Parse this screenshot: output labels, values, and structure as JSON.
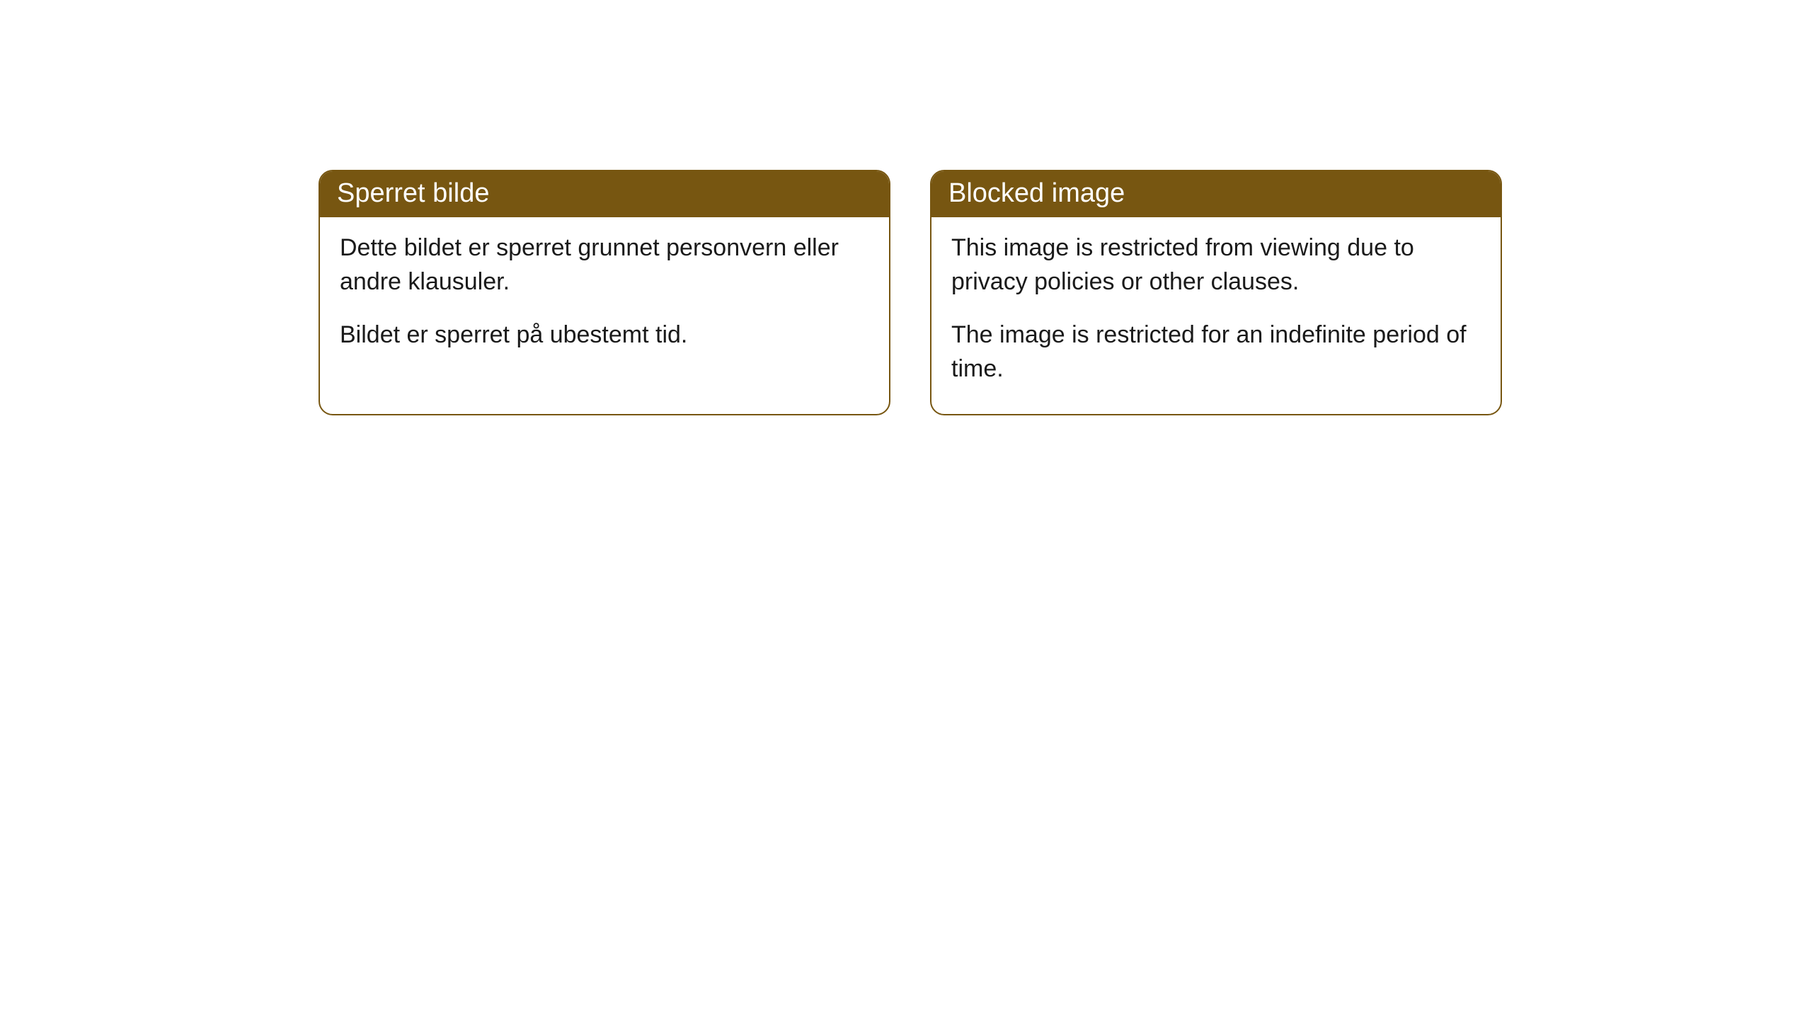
{
  "cards": [
    {
      "title": "Sperret bilde",
      "paragraph1": "Dette bildet er sperret grunnet personvern eller andre klausuler.",
      "paragraph2": "Bildet er sperret på ubestemt tid."
    },
    {
      "title": "Blocked image",
      "paragraph1": "This image is restricted from viewing due to privacy policies or other clauses.",
      "paragraph2": "The image is restricted for an indefinite period of time."
    }
  ],
  "styling": {
    "header_bg_color": "#775611",
    "header_text_color": "#ffffff",
    "border_color": "#775611",
    "body_bg_color": "#ffffff",
    "body_text_color": "#1a1a1a",
    "border_radius": 20,
    "title_fontsize": 38,
    "body_fontsize": 34
  }
}
